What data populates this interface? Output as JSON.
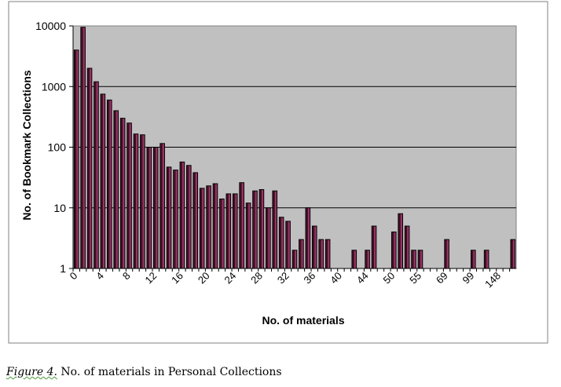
{
  "chart_data": {
    "type": "bar",
    "title": "",
    "xlabel": "No. of materials",
    "ylabel": "No. of Bookmark Collections",
    "yscale": "log",
    "ylim": [
      1,
      10000
    ],
    "yticks": [
      "1",
      "10",
      "100",
      "1000",
      "10000"
    ],
    "grid": "horizontal",
    "legend": "none",
    "categories": [
      "0",
      "1",
      "2",
      "3",
      "4",
      "5",
      "6",
      "7",
      "8",
      "9",
      "10",
      "11",
      "12",
      "13",
      "14",
      "15",
      "16",
      "17",
      "18",
      "19",
      "20",
      "21",
      "22",
      "23",
      "24",
      "25",
      "26",
      "27",
      "28",
      "29",
      "30",
      "31",
      "32",
      "33",
      "34",
      "35",
      "36",
      "37",
      "38",
      "39",
      "40",
      "41",
      "42",
      "43",
      "44",
      "",
      "",
      "",
      "50",
      "",
      "",
      "",
      "55",
      "",
      "",
      "",
      "69",
      "",
      "",
      "",
      "99",
      "",
      "",
      "",
      "148",
      "",
      ""
    ],
    "tick_labels": [
      "0",
      "4",
      "8",
      "12",
      "16",
      "20",
      "24",
      "28",
      "32",
      "36",
      "40",
      "44",
      "50",
      "55",
      "69",
      "99",
      "148"
    ],
    "values": [
      4000,
      9500,
      2000,
      1200,
      750,
      600,
      400,
      300,
      250,
      165,
      160,
      100,
      100,
      115,
      47,
      42,
      57,
      50,
      38,
      21,
      23,
      25,
      14,
      17,
      17,
      26,
      12,
      19,
      20,
      10,
      19,
      7,
      6,
      2,
      3,
      10,
      5,
      3,
      3,
      0,
      0,
      0,
      2,
      0,
      2,
      5,
      0,
      0,
      4,
      8,
      5,
      2,
      2,
      0,
      0,
      0,
      3,
      0,
      0,
      0,
      2,
      0,
      2,
      0,
      0,
      0,
      3
    ],
    "colors": {
      "bar": "#993366",
      "bar_edge": "#000000",
      "plot_bg": "#c0c0c0",
      "grid": "#000000"
    }
  },
  "caption": {
    "figure_label": "Figure 4.",
    "text": " No. of materials in Personal Collections"
  }
}
